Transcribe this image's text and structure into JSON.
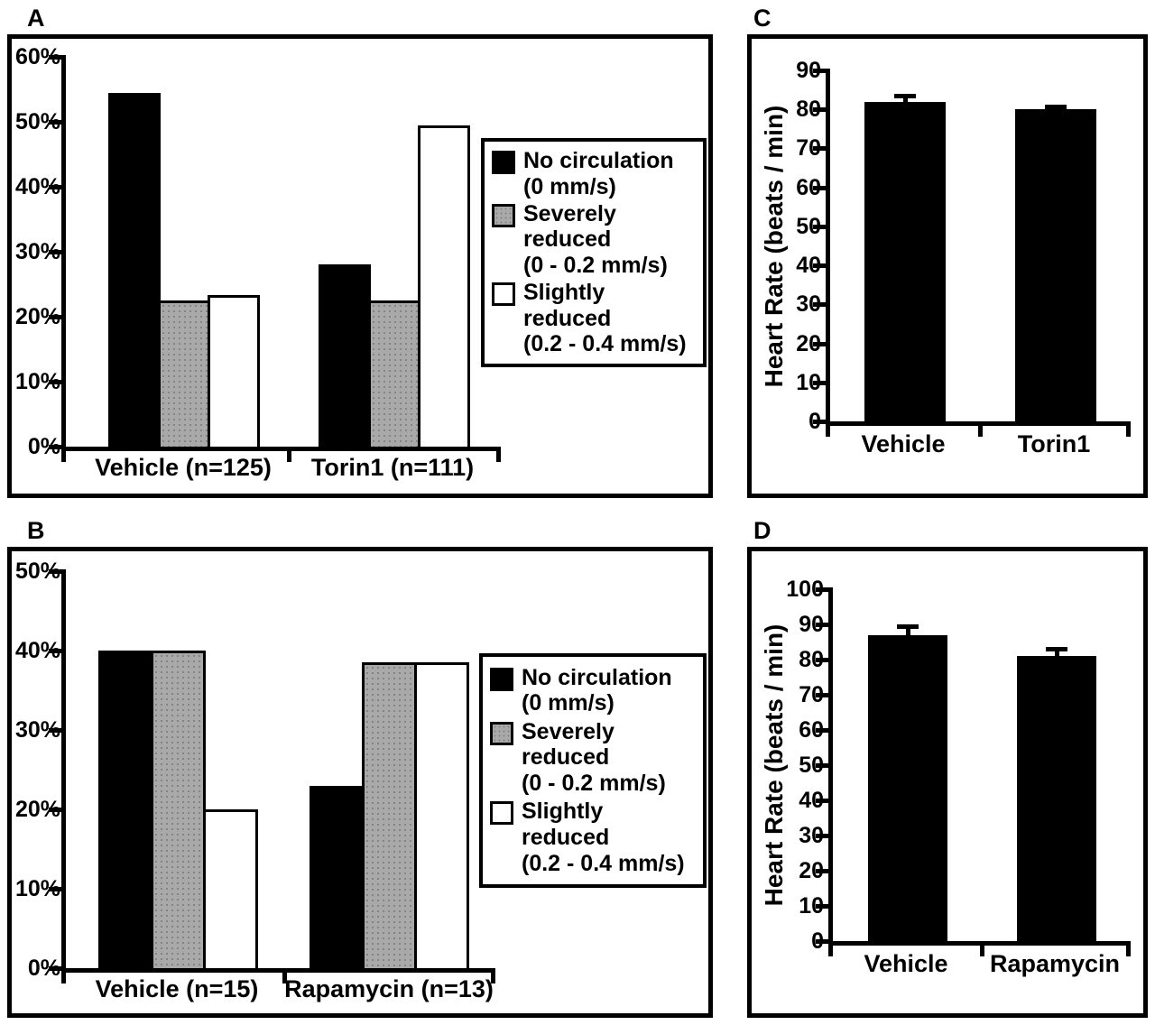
{
  "colors": {
    "bar_black": "#000000",
    "bar_gray": "#a9a9a9",
    "bar_white": "#ffffff",
    "axis": "#000000"
  },
  "chart_data": [
    {
      "panel": "A",
      "type": "bar",
      "title": "",
      "ylabel": "",
      "ytick_suffix": "%",
      "ymax": 60,
      "ytick_step": 10,
      "grid": false,
      "legend_position": "right-inside",
      "categories": [
        "Vehicle (n=125)",
        "Torin1 (n=111)"
      ],
      "series": [
        {
          "name": "No circulation (0 mm/s)",
          "color": "black",
          "values": [
            54.5,
            28
          ]
        },
        {
          "name": "Severely reduced (0 - 0.2 mm/s)",
          "color": "gray",
          "values": [
            22.5,
            22.5
          ]
        },
        {
          "name": "Slightly reduced (0.2 - 0.4 mm/s)",
          "color": "white",
          "values": [
            23.3,
            49.5
          ]
        }
      ],
      "legend": [
        {
          "swatch": "black",
          "line1": "No circulation",
          "line2": "(0 mm/s)"
        },
        {
          "swatch": "gray",
          "line1": "Severely reduced",
          "line2": "(0 - 0.2 mm/s)"
        },
        {
          "swatch": "white",
          "line1": "Slightly reduced",
          "line2": "(0.2 - 0.4 mm/s)"
        }
      ]
    },
    {
      "panel": "B",
      "type": "bar",
      "title": "",
      "ylabel": "",
      "ytick_suffix": "%",
      "ymax": 50,
      "ytick_step": 10,
      "grid": false,
      "legend_position": "right-inside",
      "categories": [
        "Vehicle (n=15)",
        "Rapamycin (n=13)"
      ],
      "series": [
        {
          "name": "No circulation (0 mm/s)",
          "color": "black",
          "values": [
            40,
            23
          ]
        },
        {
          "name": "Severely reduced (0 - 0.2 mm/s)",
          "color": "gray",
          "values": [
            40,
            38.5
          ]
        },
        {
          "name": "Slightly reduced (0.2 - 0.4 mm/s)",
          "color": "white",
          "values": [
            20,
            38.5
          ]
        }
      ],
      "legend": [
        {
          "swatch": "black",
          "line1": "No circulation",
          "line2": "(0 mm/s)"
        },
        {
          "swatch": "gray",
          "line1": "Severely reduced",
          "line2": "(0 - 0.2 mm/s)"
        },
        {
          "swatch": "white",
          "line1": "Slightly reduced",
          "line2": "(0.2 - 0.4 mm/s)"
        }
      ]
    },
    {
      "panel": "C",
      "type": "bar",
      "title": "",
      "ylabel": "Heart Rate (beats / min)",
      "ytick_suffix": "",
      "ymax": 90,
      "ytick_step": 10,
      "grid": false,
      "categories": [
        "Vehicle",
        "Torin1"
      ],
      "series": [
        {
          "name": "Heart Rate",
          "color": "black",
          "values": [
            82,
            80
          ],
          "errors": [
            1.5,
            0.8
          ]
        }
      ]
    },
    {
      "panel": "D",
      "type": "bar",
      "title": "",
      "ylabel": "Heart Rate (beats / min)",
      "ytick_suffix": "",
      "ymax": 100,
      "ytick_step": 10,
      "grid": false,
      "categories": [
        "Vehicle",
        "Rapamycin"
      ],
      "series": [
        {
          "name": "Heart Rate",
          "color": "black",
          "values": [
            87,
            81
          ],
          "errors": [
            2.5,
            2.0
          ]
        }
      ]
    }
  ]
}
